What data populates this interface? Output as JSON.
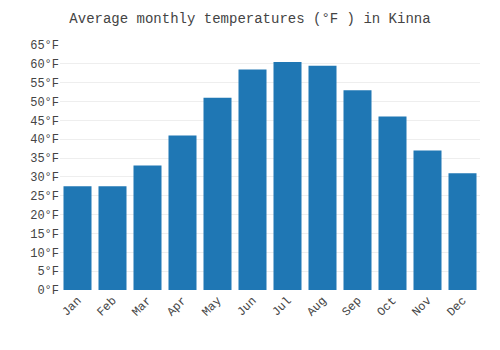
{
  "chart_data": {
    "type": "bar",
    "title": "Average monthly temperatures (°F ) in Kinna",
    "categories": [
      "Jan",
      "Feb",
      "Mar",
      "Apr",
      "May",
      "Jun",
      "Jul",
      "Aug",
      "Sep",
      "Oct",
      "Nov",
      "Dec"
    ],
    "values": [
      27.5,
      27.5,
      33,
      41,
      51,
      58.5,
      60.5,
      59.5,
      53,
      46,
      37,
      31
    ],
    "ylim": [
      0,
      65
    ],
    "yticks": [
      {
        "value": 0,
        "label": "0°F"
      },
      {
        "value": 5,
        "label": "5°F"
      },
      {
        "value": 10,
        "label": "10°F"
      },
      {
        "value": 15,
        "label": "15°F"
      },
      {
        "value": 20,
        "label": "20°F"
      },
      {
        "value": 25,
        "label": "25°F"
      },
      {
        "value": 30,
        "label": "30°F"
      },
      {
        "value": 35,
        "label": "35°F"
      },
      {
        "value": 40,
        "label": "40°F"
      },
      {
        "value": 45,
        "label": "45°F"
      },
      {
        "value": 50,
        "label": "50°F"
      },
      {
        "value": 55,
        "label": "55°F"
      },
      {
        "value": 60,
        "label": "60°F"
      },
      {
        "value": 65,
        "label": "65°F"
      }
    ],
    "grid": true
  }
}
